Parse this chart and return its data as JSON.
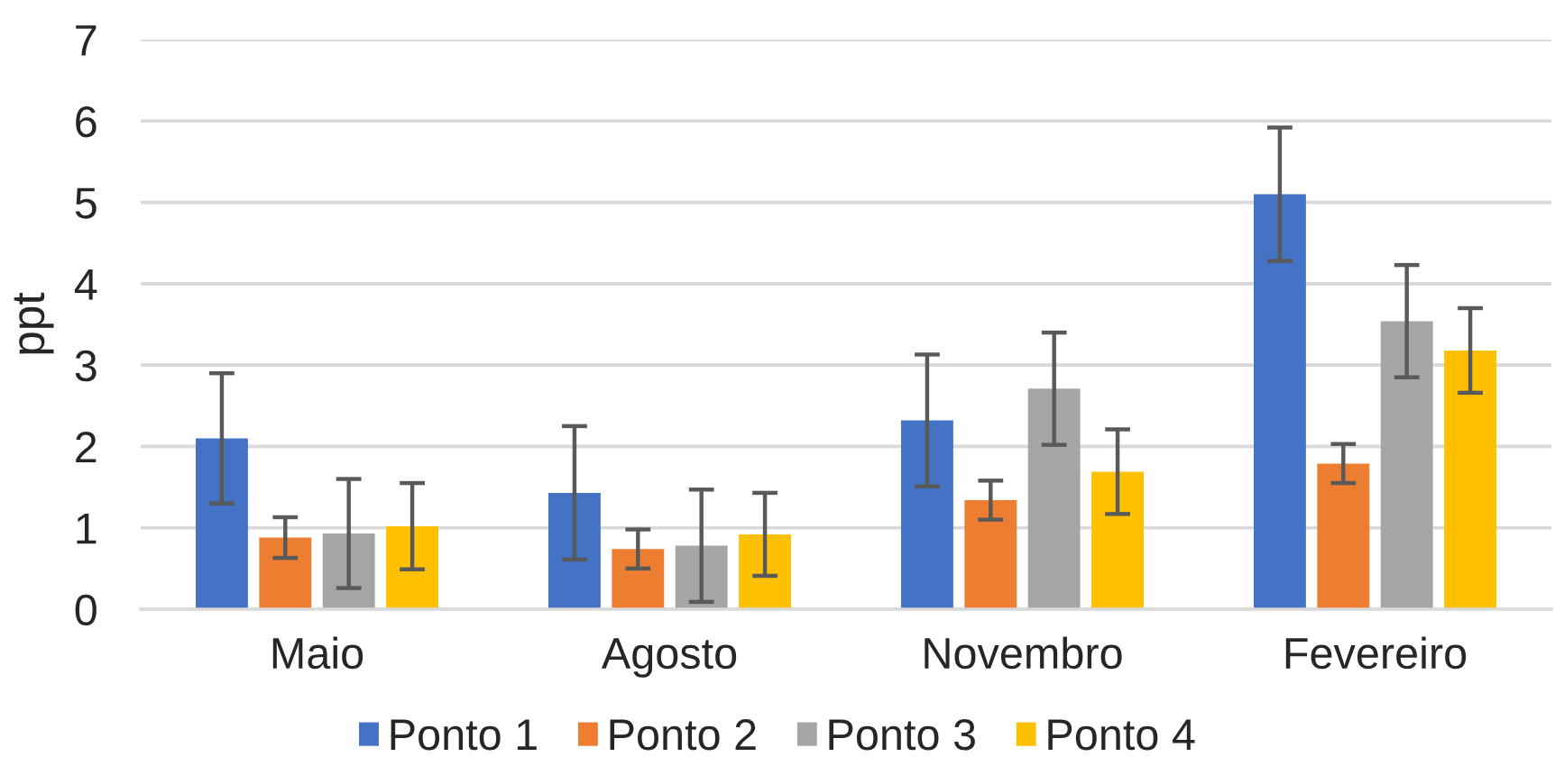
{
  "chart_data": {
    "type": "bar",
    "ylabel": "ppt",
    "categories": [
      "Maio",
      "Agosto",
      "Novembro",
      "Fevereiro"
    ],
    "series": [
      {
        "name": "Ponto 1",
        "color": "#4472c4",
        "values": [
          2.1,
          1.43,
          2.32,
          5.1
        ],
        "errors": [
          0.8,
          0.82,
          0.81,
          0.82
        ]
      },
      {
        "name": "Ponto 2",
        "color": "#ed7d31",
        "values": [
          0.88,
          0.74,
          1.34,
          1.79
        ],
        "errors": [
          0.25,
          0.24,
          0.24,
          0.24
        ]
      },
      {
        "name": "Ponto 3",
        "color": "#a5a5a5",
        "values": [
          0.93,
          0.78,
          2.71,
          3.54
        ],
        "errors": [
          0.67,
          0.69,
          0.69,
          0.69
        ]
      },
      {
        "name": "Ponto 4",
        "color": "#ffc000",
        "values": [
          1.02,
          0.92,
          1.69,
          3.18
        ],
        "errors": [
          0.53,
          0.51,
          0.52,
          0.52
        ]
      }
    ],
    "ylim": [
      0,
      7
    ],
    "yticks": [
      0,
      1,
      2,
      3,
      4,
      5,
      6,
      7
    ],
    "grid": "y",
    "legend": "bottom"
  }
}
